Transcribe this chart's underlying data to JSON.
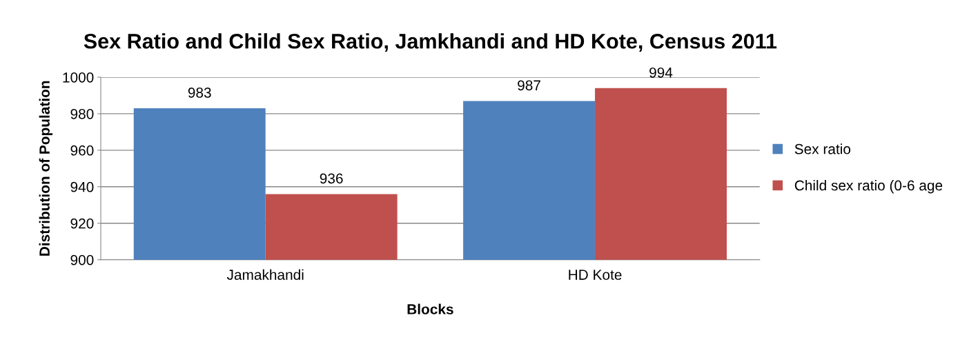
{
  "chart_data": {
    "type": "bar",
    "title": "Sex Ratio and Child Sex Ratio, Jamkhandi and HD Kote, Census 2011",
    "xlabel": "Blocks",
    "ylabel": "Distribution of Population",
    "categories": [
      "Jamakhandi",
      "HD Kote"
    ],
    "series": [
      {
        "name": "Sex ratio",
        "color": "#4f81bd",
        "values": [
          983,
          987
        ]
      },
      {
        "name": "Child sex ratio (0-6 age",
        "color": "#c0504d",
        "values": [
          936,
          994
        ]
      }
    ],
    "ylim": [
      900,
      1000
    ],
    "yticks": [
      900,
      920,
      940,
      960,
      980,
      1000
    ],
    "grid": "y",
    "legend": "right",
    "data_labels": true
  }
}
